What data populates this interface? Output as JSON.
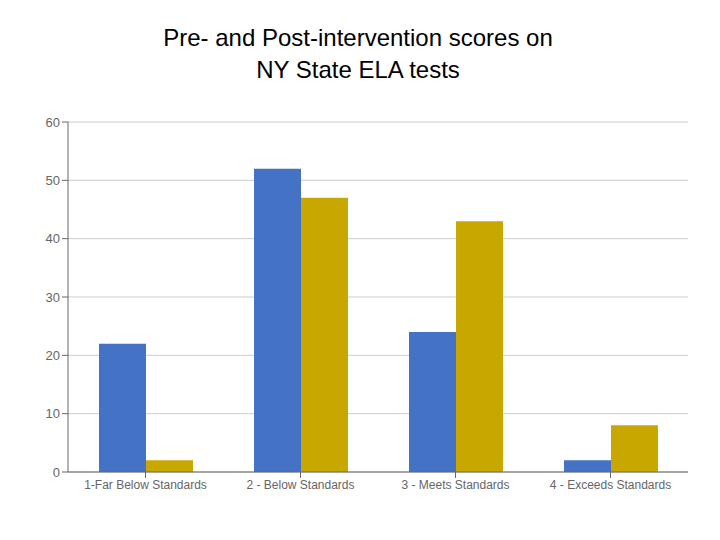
{
  "chart_data": {
    "type": "bar",
    "title": "Pre- and Post-intervention scores on\nNY State ELA tests",
    "categories": [
      "1-Far Below Standards",
      "2 - Below Standards",
      "3 - Meets Standards",
      "4 - Exceeds Standards"
    ],
    "series": [
      {
        "color": "#4472C4",
        "values": [
          22,
          52,
          24,
          2
        ]
      },
      {
        "color": "#C8A800",
        "values": [
          2,
          47,
          43,
          8
        ]
      }
    ],
    "ylim": [
      0,
      60
    ],
    "yticks": [
      0,
      10,
      20,
      30,
      40,
      50,
      60
    ],
    "grid": true
  }
}
